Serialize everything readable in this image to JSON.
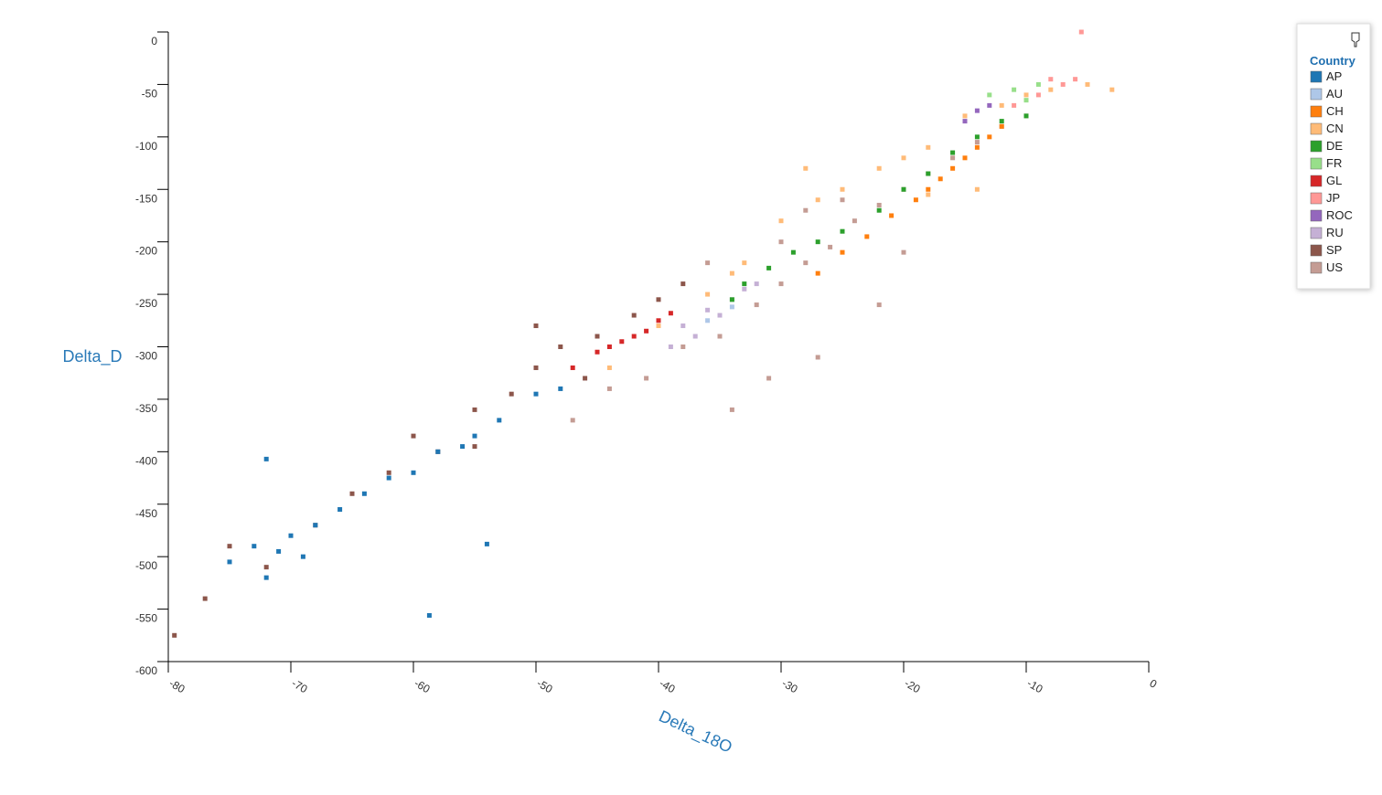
{
  "chart_data": {
    "type": "scatter",
    "xlabel": "Delta_18O",
    "ylabel": "Delta_D",
    "legend_title": "Country",
    "xlim": [
      -80,
      0
    ],
    "ylim": [
      -600,
      0
    ],
    "xticks": [
      -80,
      -70,
      -60,
      -50,
      -40,
      -30,
      -20,
      -10,
      0
    ],
    "yticks": [
      0,
      -50,
      -100,
      -150,
      -200,
      -250,
      -300,
      -350,
      -400,
      -450,
      -500,
      -550,
      -600
    ],
    "legend": "right",
    "series": [
      {
        "name": "AP",
        "color": "#1f77b4",
        "x": [
          -75,
          -73,
          -72,
          -71,
          -70,
          -69,
          -68,
          -66,
          -64,
          -62,
          -60,
          -58,
          -56,
          -55,
          -53,
          -50,
          -48,
          -72,
          -58.7,
          -54
        ],
        "y": [
          -505,
          -490,
          -520,
          -495,
          -480,
          -500,
          -470,
          -455,
          -440,
          -425,
          -420,
          -400,
          -395,
          -385,
          -370,
          -345,
          -340,
          -407,
          -556,
          -488
        ]
      },
      {
        "name": "AU",
        "color": "#aec7e8",
        "x": [
          -36,
          -34
        ],
        "y": [
          -275,
          -262
        ]
      },
      {
        "name": "CH",
        "color": "#ff7f0e",
        "x": [
          -27,
          -25,
          -23,
          -21,
          -19,
          -18,
          -17,
          -16,
          -15,
          -14,
          -13,
          -12
        ],
        "y": [
          -230,
          -210,
          -195,
          -175,
          -160,
          -150,
          -140,
          -130,
          -120,
          -110,
          -100,
          -90
        ]
      },
      {
        "name": "CN",
        "color": "#ffbb78",
        "x": [
          -44,
          -40,
          -36,
          -33,
          -30,
          -27,
          -25,
          -22,
          -20,
          -18,
          -15,
          -12,
          -10,
          -8,
          -5,
          -3,
          -18,
          -14,
          -34,
          -28
        ],
        "y": [
          -320,
          -280,
          -250,
          -220,
          -180,
          -160,
          -150,
          -130,
          -120,
          -110,
          -80,
          -70,
          -60,
          -55,
          -50,
          -55,
          -155,
          -150,
          -230,
          -130
        ]
      },
      {
        "name": "DE",
        "color": "#2ca02c",
        "x": [
          -33,
          -31,
          -29,
          -27,
          -25,
          -22,
          -20,
          -18,
          -16,
          -14,
          -12,
          -10,
          -34
        ],
        "y": [
          -240,
          -225,
          -210,
          -200,
          -190,
          -170,
          -150,
          -135,
          -115,
          -100,
          -85,
          -80,
          -255
        ]
      },
      {
        "name": "FR",
        "color": "#98df8a",
        "x": [
          -13,
          -11,
          -10,
          -9
        ],
        "y": [
          -60,
          -55,
          -65,
          -50
        ]
      },
      {
        "name": "GL",
        "color": "#d62728",
        "x": [
          -47,
          -45,
          -43,
          -41,
          -40,
          -39,
          -44,
          -42
        ],
        "y": [
          -320,
          -305,
          -295,
          -285,
          -275,
          -268,
          -300,
          -290
        ]
      },
      {
        "name": "JP",
        "color": "#ff9896",
        "x": [
          -9,
          -7,
          -6,
          -5.5,
          -11,
          -8
        ],
        "y": [
          -60,
          -50,
          -45,
          0,
          -70,
          -45
        ]
      },
      {
        "name": "ROC",
        "color": "#9467bd",
        "x": [
          -14,
          -13,
          -15
        ],
        "y": [
          -75,
          -70,
          -85
        ]
      },
      {
        "name": "RU",
        "color": "#c5b0d5",
        "x": [
          -38,
          -36,
          -34,
          -33,
          -37,
          -35,
          -39,
          -32
        ],
        "y": [
          -280,
          -265,
          -255,
          -245,
          -290,
          -270,
          -300,
          -240
        ]
      },
      {
        "name": "SP",
        "color": "#8c564b",
        "x": [
          -79.5,
          -77,
          -75,
          -72,
          -68,
          -65,
          -62,
          -60,
          -58,
          -55,
          -52,
          -50,
          -48,
          -45,
          -42,
          -40,
          -38,
          -50,
          -46,
          -55
        ],
        "y": [
          -575,
          -540,
          -490,
          -510,
          -470,
          -440,
          -420,
          -385,
          -400,
          -360,
          -345,
          -320,
          -300,
          -290,
          -270,
          -255,
          -240,
          -280,
          -330,
          -395
        ]
      },
      {
        "name": "US",
        "color": "#c49c94",
        "x": [
          -47,
          -44,
          -41,
          -38,
          -35,
          -32,
          -30,
          -28,
          -26,
          -24,
          -22,
          -20,
          -18,
          -16,
          -14,
          -12,
          -10,
          -30,
          -25,
          -22,
          -27,
          -34,
          -31,
          -20,
          -36,
          -28
        ],
        "y": [
          -370,
          -340,
          -330,
          -300,
          -290,
          -260,
          -240,
          -220,
          -205,
          -180,
          -165,
          -150,
          -135,
          -120,
          -105,
          -90,
          -80,
          -200,
          -160,
          -260,
          -310,
          -360,
          -330,
          -210,
          -220,
          -170
        ]
      }
    ]
  }
}
